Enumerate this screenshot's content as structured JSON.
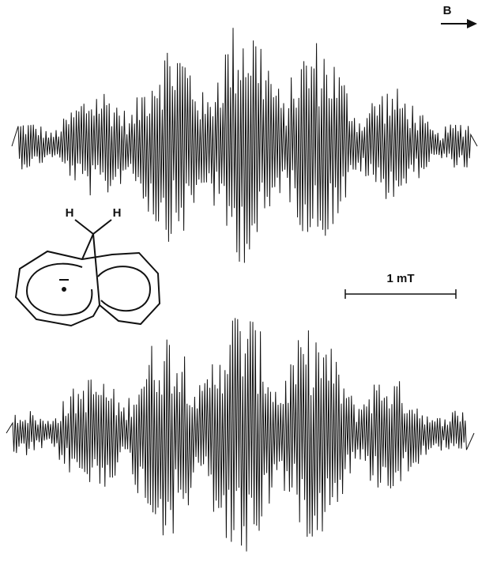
{
  "labels": {
    "field": "B",
    "scale_bar": "1 mT",
    "structure_h_left": "H",
    "structure_h_right": "H"
  }
}
